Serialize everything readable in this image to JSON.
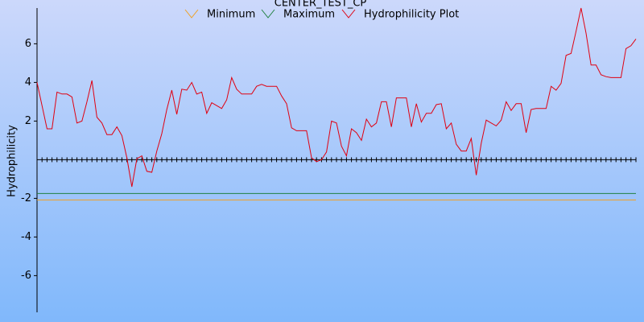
{
  "chart_data": {
    "type": "line",
    "title": "CENTER_TEST_CP",
    "y_label": "Hydrophilicity",
    "ylim": [
      -7.9,
      7.85
    ],
    "yticks": [
      -6,
      -4,
      -2,
      2,
      4,
      6
    ],
    "series": [
      {
        "name": "Minimum",
        "color": "#f0a020",
        "value": -2.08
      },
      {
        "name": "Maximum",
        "color": "#208040",
        "value": -1.75
      },
      {
        "name": "Hydrophilicity Plot",
        "color": "#e00010",
        "values": [
          4.0,
          2.8,
          1.6,
          1.6,
          3.5,
          3.4,
          3.4,
          3.25,
          1.9,
          2.0,
          3.0,
          4.1,
          2.2,
          1.9,
          1.3,
          1.3,
          1.7,
          1.25,
          0.1,
          -1.4,
          0.05,
          0.2,
          -0.6,
          -0.65,
          0.45,
          1.35,
          2.6,
          3.6,
          2.35,
          3.65,
          3.6,
          4.0,
          3.4,
          3.5,
          2.4,
          2.95,
          2.8,
          2.65,
          3.1,
          4.25,
          3.65,
          3.4,
          3.4,
          3.4,
          3.8,
          3.9,
          3.8,
          3.8,
          3.8,
          3.3,
          2.9,
          1.65,
          1.5,
          1.5,
          1.5,
          0.1,
          -0.1,
          0.0,
          0.4,
          2.0,
          1.9,
          0.7,
          0.2,
          1.6,
          1.4,
          1.0,
          2.1,
          1.7,
          1.9,
          3.0,
          3.0,
          1.7,
          3.2,
          3.2,
          3.2,
          1.7,
          2.9,
          1.95,
          2.4,
          2.4,
          2.85,
          2.9,
          1.6,
          1.9,
          0.8,
          0.45,
          0.45,
          1.1,
          -0.8,
          0.85,
          2.05,
          1.9,
          1.75,
          2.05,
          3.0,
          2.55,
          2.9,
          2.9,
          1.4,
          2.6,
          2.65,
          2.65,
          2.65,
          3.8,
          3.6,
          3.95,
          5.4,
          5.5,
          6.65,
          7.85,
          6.55,
          4.9,
          4.9,
          4.4,
          4.3,
          4.25,
          4.25,
          4.25,
          5.75,
          5.9,
          6.25
        ]
      }
    ]
  }
}
